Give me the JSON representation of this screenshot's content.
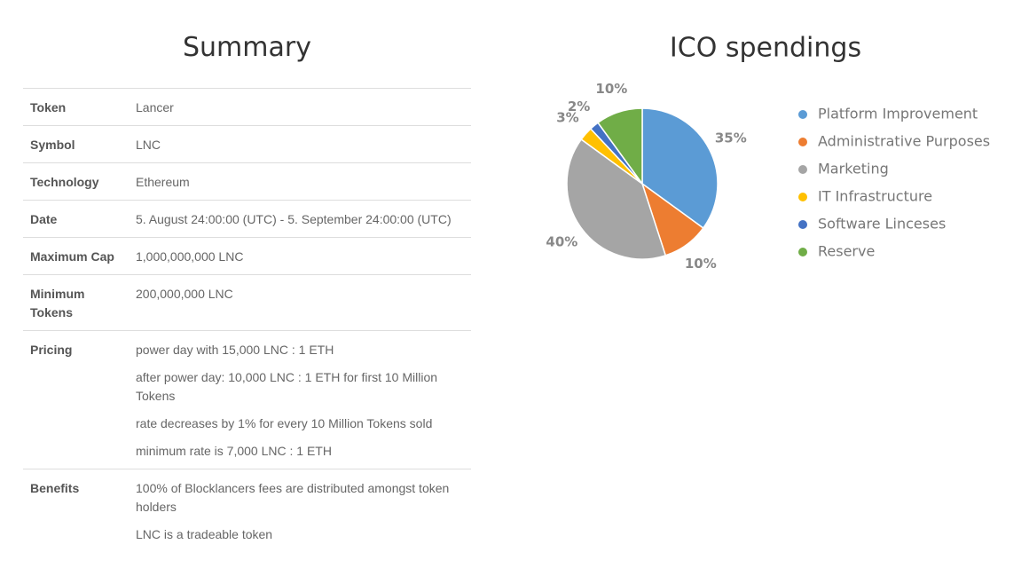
{
  "summary": {
    "title": "Summary",
    "rows": [
      {
        "label": "Token",
        "values": [
          "Lancer"
        ]
      },
      {
        "label": "Symbol",
        "values": [
          "LNC"
        ]
      },
      {
        "label": "Technology",
        "values": [
          "Ethereum"
        ]
      },
      {
        "label": "Date",
        "values": [
          "5. August 24:00:00 (UTC) - 5. September 24:00:00 (UTC)"
        ]
      },
      {
        "label": "Maximum Cap",
        "values": [
          "1,000,000,000 LNC"
        ]
      },
      {
        "label": "Minimum Tokens",
        "values": [
          "200,000,000 LNC"
        ]
      },
      {
        "label": "Pricing",
        "values": [
          "power day with 15,000 LNC : 1 ETH",
          "after power day: 10,000 LNC : 1 ETH for first 10 Million Tokens",
          "rate decreases by 1% for every 10 Million Tokens sold",
          "minimum rate is 7,000 LNC : 1 ETH"
        ]
      },
      {
        "label": "Benefits",
        "values": [
          "100% of Blocklancers fees are distributed amongst token holders",
          "LNC is a tradeable token"
        ]
      }
    ]
  },
  "chart_data": {
    "type": "pie",
    "title": "ICO spendings",
    "categories": [
      "Platform Improvement",
      "Administrative Purposes",
      "Marketing",
      "IT Infrastructure",
      "Software Linceses",
      "Reserve"
    ],
    "values": [
      35,
      10,
      40,
      3,
      2,
      10
    ],
    "value_labels": [
      "35%",
      "10%",
      "40%",
      "3%",
      "2%",
      "10%"
    ],
    "colors": [
      "#5b9bd5",
      "#ed7d31",
      "#a5a5a5",
      "#ffc000",
      "#4472c4",
      "#70ad47"
    ],
    "legend": "right"
  }
}
